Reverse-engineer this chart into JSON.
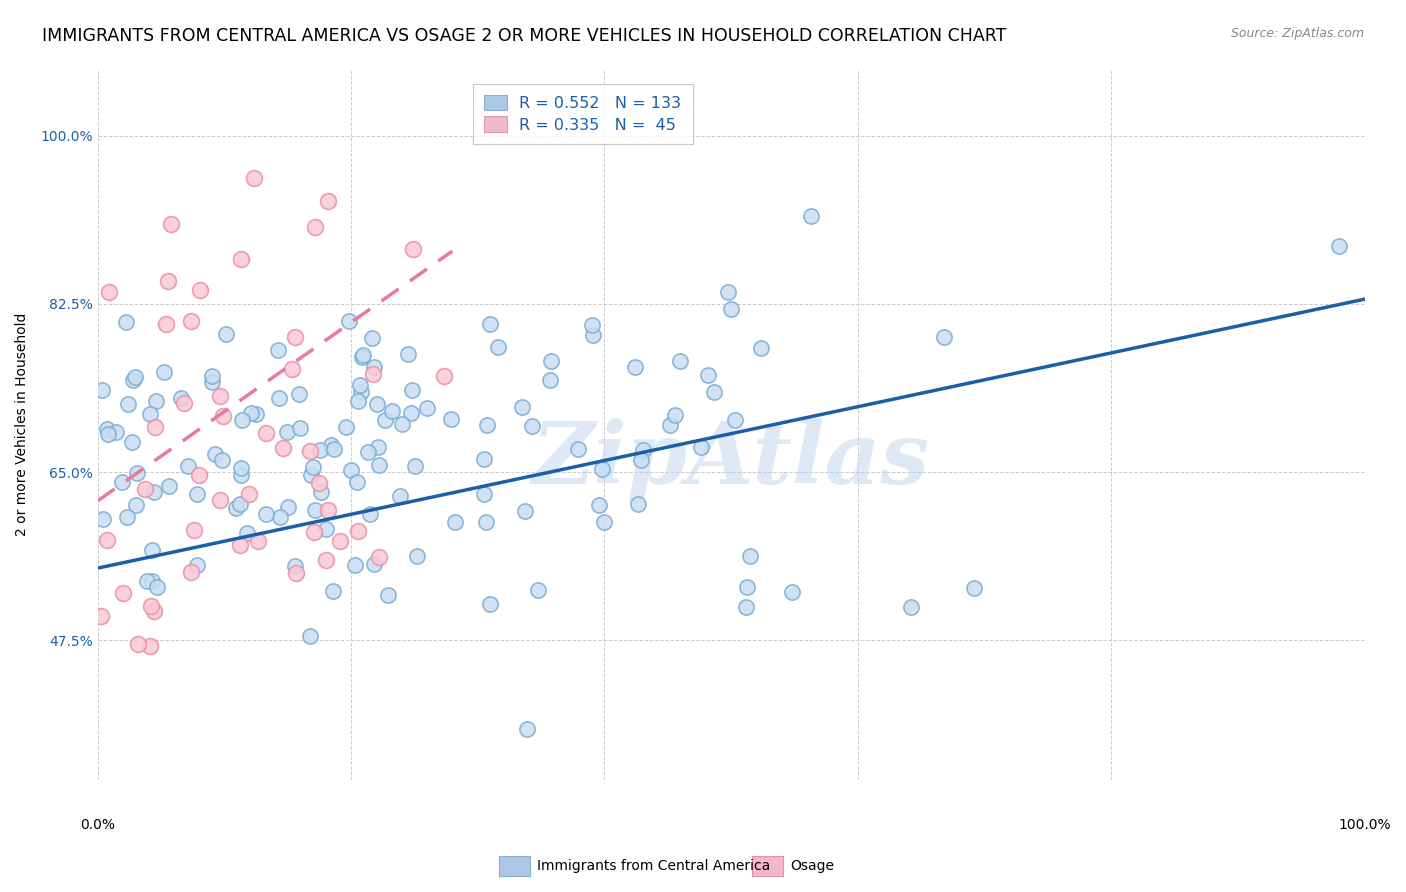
{
  "title": "IMMIGRANTS FROM CENTRAL AMERICA VS OSAGE 2 OR MORE VEHICLES IN HOUSEHOLD CORRELATION CHART",
  "source": "Source: ZipAtlas.com",
  "ylabel": "2 or more Vehicles in Household",
  "ytick_labels": [
    "47.5%",
    "65.0%",
    "82.5%",
    "100.0%"
  ],
  "ytick_values": [
    47.5,
    65.0,
    82.5,
    100.0
  ],
  "watermark": "ZipAtlas",
  "legend_entry1_label": "R = 0.552   N = 133",
  "legend_entry2_label": "R = 0.335   N =  45",
  "legend_entry1_color": "#aec6e8",
  "legend_entry2_color": "#f4b8c8",
  "blue_line_color": "#1a5fa8",
  "pink_line_color": "#e87a9a",
  "blue_scatter_facecolor": "#c8ddf2",
  "blue_scatter_edgecolor": "#7aadd4",
  "pink_scatter_facecolor": "#fac8d5",
  "pink_scatter_edgecolor": "#e890a8",
  "R_blue": 0.552,
  "N_blue": 133,
  "R_pink": 0.335,
  "N_pink": 45,
  "seed_blue": 42,
  "seed_pink": 7,
  "xlim": [
    0.0,
    100.0
  ],
  "ylim": [
    33.0,
    107.0
  ],
  "background_color": "#ffffff",
  "grid_color": "#cccccc",
  "title_fontsize": 12.5,
  "axis_label_fontsize": 10,
  "tick_fontsize": 10,
  "blue_line_start_y": 55.0,
  "blue_line_end_y": 83.0,
  "pink_line_start_x": 0.0,
  "pink_line_start_y": 62.0,
  "pink_line_end_x": 28.0,
  "pink_line_end_y": 88.0
}
